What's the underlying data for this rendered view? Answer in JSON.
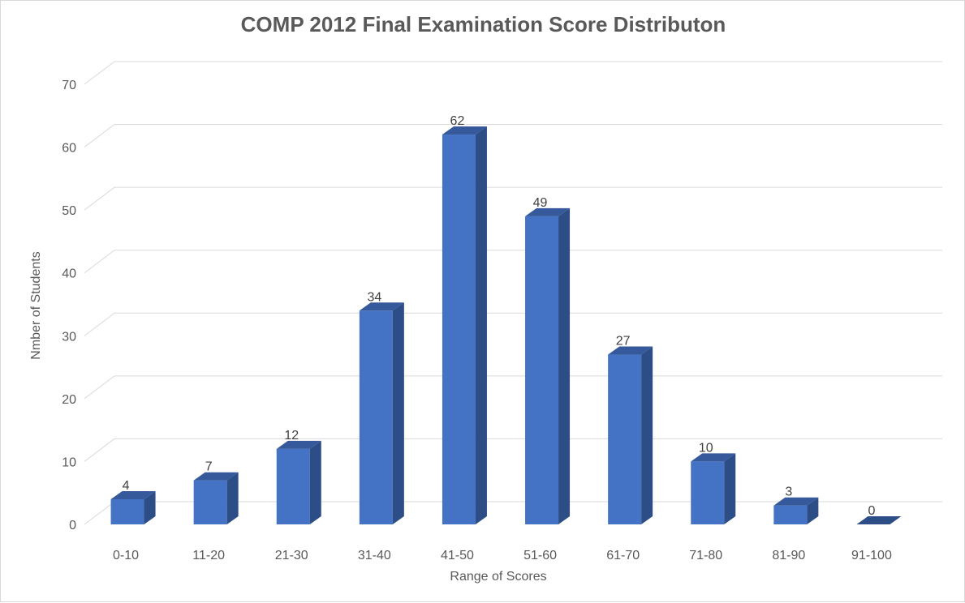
{
  "chart_data": {
    "type": "bar",
    "title": "COMP 2012 Final Examination Score Distributon",
    "xlabel": "Range of Scores",
    "ylabel": "Nmber of Students",
    "categories": [
      "0-10",
      "11-20",
      "21-30",
      "31-40",
      "41-50",
      "51-60",
      "61-70",
      "71-80",
      "81-90",
      "91-100"
    ],
    "values": [
      4,
      7,
      12,
      34,
      62,
      49,
      27,
      10,
      3,
      0
    ],
    "ylim": [
      0,
      70
    ],
    "yticks": [
      0,
      10,
      20,
      30,
      40,
      50,
      60,
      70
    ],
    "grid": true,
    "legend": "none",
    "data_labels": true,
    "style": "3d-column",
    "colors": {
      "bar_front": "#4472c4",
      "bar_side": "#2c4d86",
      "bar_top": "#35599a",
      "grid": "#d9d9d9",
      "text": "#595959"
    }
  }
}
